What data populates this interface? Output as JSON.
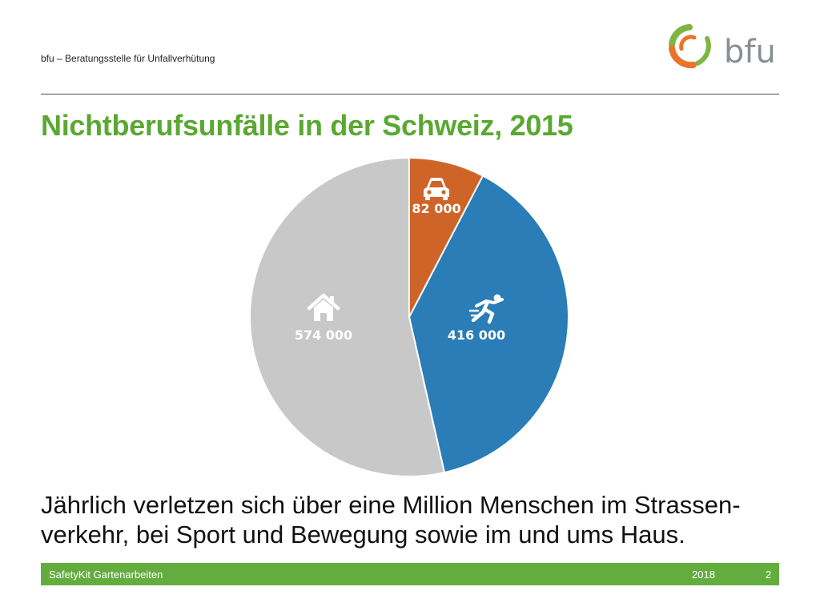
{
  "header": {
    "org_name": "bfu – Beratungsstelle für Unfallverhütung",
    "logo_text": "bfu"
  },
  "slide": {
    "title": "Nichtberufsunfälle in der Schweiz, 2015",
    "caption_line1": "Jährlich verletzen sich über eine Million Menschen im Strassen-",
    "caption_line2": "verkehr, bei Sport und Bewegung sowie im und ums Haus."
  },
  "footer": {
    "left": "SafetyKit Gartenarbeiten",
    "year": "2018",
    "page": "2"
  },
  "colors": {
    "title_green": "#5aa832",
    "footer_green": "#63ad3f",
    "road": "#cf6428",
    "sport": "#2a7db6",
    "home": "#c8c8c8",
    "logo_orange": "#e8752a",
    "logo_green": "#7fb541",
    "logo_gray": "#8a8f94"
  },
  "chart_data": {
    "type": "pie",
    "start_angle": "12 o'clock, clockwise",
    "slices": [
      {
        "category": "road",
        "icon": "car-icon",
        "value": 82000,
        "label": "82 000",
        "color": "#cf6428"
      },
      {
        "category": "sport",
        "icon": "runner-icon",
        "value": 416000,
        "label": "416 000",
        "color": "#2a7db6"
      },
      {
        "category": "home",
        "icon": "house-icon",
        "value": 574000,
        "label": "574 000",
        "color": "#c8c8c8"
      }
    ]
  }
}
